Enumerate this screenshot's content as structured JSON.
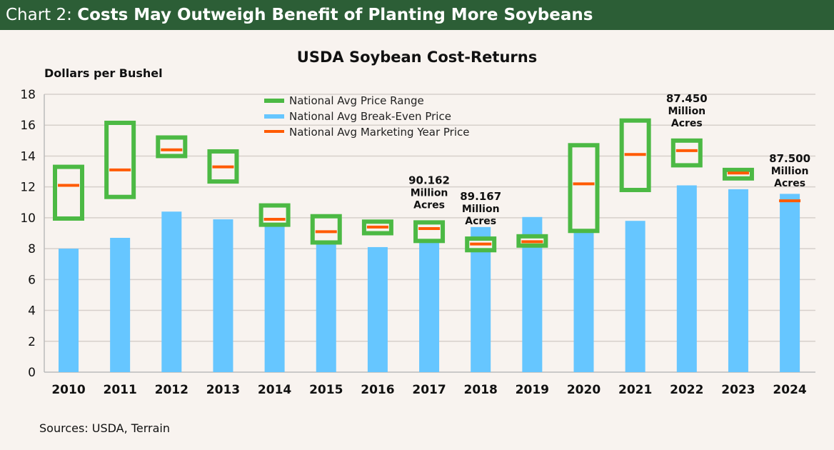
{
  "header": {
    "label": "Chart 2: ",
    "title": "Costs May Outweigh Benefit of Planting More Soybeans"
  },
  "source": "Sources: USDA, Terrain",
  "colors": {
    "header": "#2c5e36",
    "range": "#4cb944",
    "breakeven": "#66c6ff",
    "price": "#ff5a00"
  },
  "chart_data": {
    "type": "bar",
    "title": "USDA Soybean Cost-Returns",
    "ylabel": "Dollars per Bushel",
    "ylim": [
      0,
      18
    ],
    "yticks": [
      0,
      2,
      4,
      6,
      8,
      10,
      12,
      14,
      16,
      18
    ],
    "grid": true,
    "legend_placement": "top-center",
    "categories": [
      "2010",
      "2011",
      "2012",
      "2013",
      "2014",
      "2015",
      "2016",
      "2017",
      "2018",
      "2019",
      "2020",
      "2021",
      "2022",
      "2023",
      "2024"
    ],
    "series": [
      {
        "name": "National Avg Price Range",
        "kind": "range",
        "low": [
          9.95,
          11.35,
          14.0,
          12.35,
          9.55,
          8.4,
          9.0,
          8.5,
          7.9,
          8.2,
          9.15,
          11.8,
          13.4,
          12.55,
          null
        ],
        "high": [
          13.3,
          16.15,
          15.2,
          14.3,
          10.8,
          10.1,
          9.75,
          9.7,
          8.65,
          8.8,
          14.7,
          16.3,
          15.0,
          13.1,
          null
        ]
      },
      {
        "name": "National Avg Break-Even Price",
        "kind": "bar",
        "values": [
          8.0,
          8.7,
          10.4,
          9.9,
          9.7,
          9.0,
          8.1,
          8.5,
          9.4,
          10.05,
          9.1,
          9.8,
          12.1,
          11.85,
          11.55
        ]
      },
      {
        "name": "National Avg Marketing Year Price",
        "kind": "marker",
        "values": [
          12.1,
          13.1,
          14.4,
          13.3,
          9.9,
          9.1,
          9.4,
          9.3,
          8.3,
          8.45,
          12.2,
          14.1,
          14.35,
          12.9,
          11.1
        ]
      }
    ],
    "annotations": [
      {
        "category": "2017",
        "lines": [
          "90.162",
          "Million",
          "Acres"
        ]
      },
      {
        "category": "2018",
        "lines": [
          "89.167",
          "Million",
          "Acres"
        ]
      },
      {
        "category": "2022",
        "lines": [
          "87.450",
          "Million",
          "Acres"
        ]
      },
      {
        "category": "2024",
        "lines": [
          "87.500",
          "Million",
          "Acres"
        ]
      }
    ]
  }
}
